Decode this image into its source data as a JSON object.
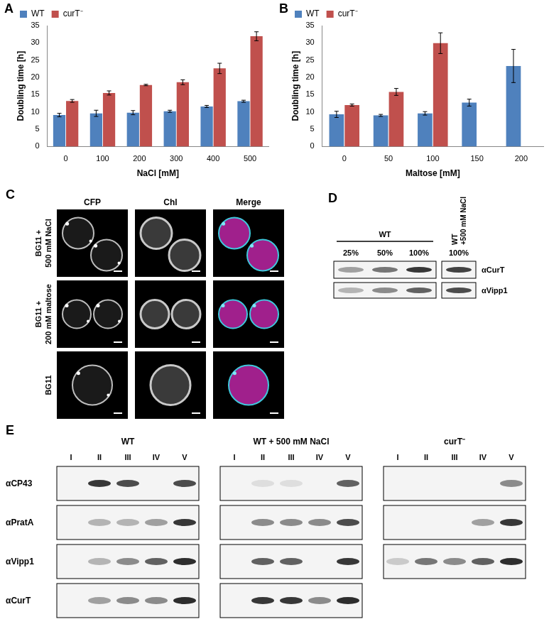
{
  "chart_data": [
    {
      "panel_label": "A",
      "type": "bar",
      "x_label": "NaCl [mM]",
      "y_label": "Doubling time [h]",
      "categories": [
        "0",
        "100",
        "200",
        "300",
        "400",
        "500"
      ],
      "series": [
        {
          "name": "WT",
          "color": "#4f81bd",
          "values": [
            9.1,
            9.6,
            9.8,
            10.2,
            11.6,
            13.1
          ],
          "errors": [
            0.5,
            0.9,
            0.6,
            0.3,
            0.3,
            0.3
          ]
        },
        {
          "name": "curT⁻",
          "color": "#c0504d",
          "values": [
            13.2,
            15.5,
            17.8,
            18.6,
            22.6,
            31.9
          ],
          "errors": [
            0.4,
            0.6,
            0.2,
            0.7,
            1.5,
            1.3
          ]
        }
      ],
      "ylim": [
        0,
        35
      ],
      "yticks": [
        0,
        5,
        10,
        15,
        20,
        25,
        30,
        35
      ],
      "grid": false,
      "legend": "top-left"
    },
    {
      "panel_label": "B",
      "type": "bar",
      "x_label": "Maltose [mM]",
      "y_label": "Doubling time [h]",
      "categories": [
        "0",
        "50",
        "100",
        "150",
        "200"
      ],
      "series": [
        {
          "name": "WT",
          "color": "#4f81bd",
          "values": [
            9.3,
            9.0,
            9.6,
            12.7,
            23.3
          ],
          "errors": [
            0.9,
            0.3,
            0.5,
            1.0,
            4.8
          ]
        },
        {
          "name": "curT⁻",
          "color": "#c0504d",
          "values": [
            12.0,
            15.8,
            29.9,
            null,
            null
          ],
          "errors": [
            0.3,
            1.0,
            3.0,
            null,
            null
          ]
        }
      ],
      "ylim": [
        0,
        35
      ],
      "yticks": [
        0,
        5,
        10,
        15,
        20,
        25,
        30,
        35
      ],
      "grid": false,
      "legend": "top-left"
    }
  ],
  "panel_C": {
    "panel_label": "C",
    "columns": [
      "CFP",
      "Chl",
      "Merge"
    ],
    "rows": [
      [
        "BG11 +",
        "500 mM NaCl"
      ],
      [
        "BG11 +",
        "200 mM maltose"
      ],
      [
        "BG11"
      ]
    ]
  },
  "panel_D": {
    "panel_label": "D",
    "rows": [
      "αCurT",
      "αVipp1"
    ],
    "groups": [
      {
        "name": [
          "WT"
        ],
        "lanes": [
          "25%",
          "50%",
          "100%"
        ],
        "bands": [
          [
            0.4,
            0.6,
            0.9
          ],
          [
            0.3,
            0.5,
            0.7
          ]
        ]
      },
      {
        "name": [
          "WT",
          "+500 mM NaCl"
        ],
        "lanes": [
          "100%"
        ],
        "bands": [
          [
            0.85
          ],
          [
            0.8
          ]
        ]
      }
    ]
  },
  "panel_E": {
    "panel_label": "E",
    "lanes": [
      "I",
      "II",
      "III",
      "IV",
      "V"
    ],
    "rows": [
      "αCP43",
      "αPratA",
      "αVipp1",
      "αCurT"
    ],
    "groups": [
      {
        "name": "WT",
        "bands": [
          [
            0,
            0.9,
            0.8,
            0,
            0.8
          ],
          [
            0,
            0.3,
            0.3,
            0.4,
            0.9
          ],
          [
            0,
            0.3,
            0.5,
            0.7,
            0.95
          ],
          [
            0,
            0.4,
            0.5,
            0.5,
            0.95
          ]
        ]
      },
      {
        "name": "WT + 500 mM NaCl",
        "bands": [
          [
            0,
            0.1,
            0.1,
            0,
            0.7
          ],
          [
            0,
            0.5,
            0.5,
            0.5,
            0.8
          ],
          [
            0,
            0.7,
            0.7,
            0,
            0.9
          ],
          [
            0,
            0.9,
            0.9,
            0.5,
            0.95
          ]
        ]
      },
      {
        "name": "curT⁻",
        "bands": [
          [
            0,
            0,
            0,
            0,
            0.5
          ],
          [
            0,
            0,
            0,
            0.4,
            0.9
          ],
          [
            0.2,
            0.6,
            0.5,
            0.7,
            0.95
          ],
          null
        ]
      }
    ]
  }
}
